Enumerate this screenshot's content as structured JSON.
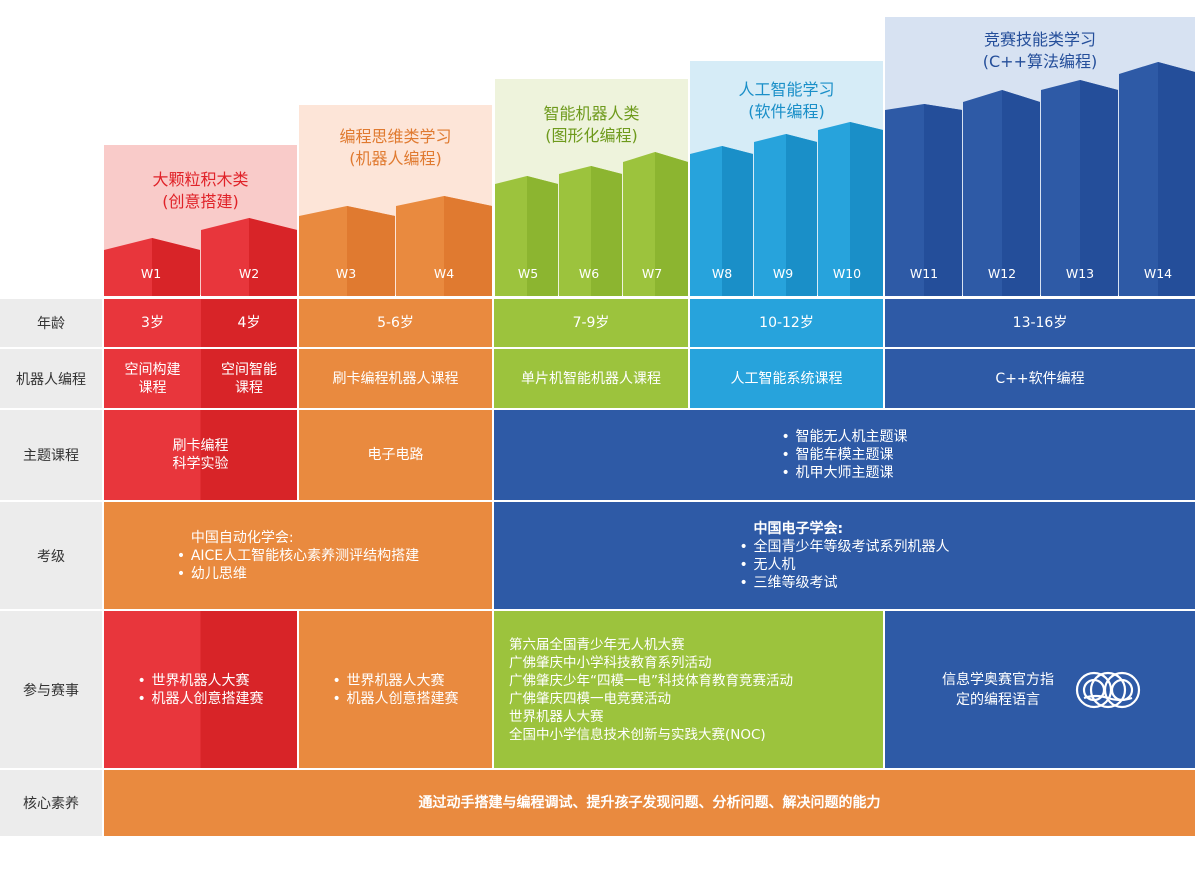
{
  "stages": [
    {
      "title": "大颗粒积木类",
      "subtitle": "(创意搭建)",
      "weeks": [
        "W1",
        "W2"
      ]
    },
    {
      "title": "编程思维类学习",
      "subtitle": "(机器人编程)",
      "weeks": [
        "W3",
        "W4"
      ]
    },
    {
      "title": "智能机器人类",
      "subtitle": "(图形化编程)",
      "weeks": [
        "W5",
        "W6",
        "W7"
      ]
    },
    {
      "title": "人工智能学习",
      "subtitle": "(软件编程)",
      "weeks": [
        "W8",
        "W9",
        "W10"
      ]
    },
    {
      "title": "竞赛技能类学习",
      "subtitle": "(C++算法编程)",
      "weeks": [
        "W11",
        "W12",
        "W13",
        "W14"
      ]
    }
  ],
  "rows": {
    "age": {
      "label": "年龄",
      "cells": [
        "3岁",
        "4岁",
        "5-6岁",
        "7-9岁",
        "10-12岁",
        "13-16岁"
      ]
    },
    "robot": {
      "label": "机器人编程",
      "cells": [
        "空间构建课程",
        "空间智能课程",
        "刷卡编程机器人课程",
        "单片机智能机器人课程",
        "人工智能系统课程",
        "C++软件编程"
      ]
    },
    "theme": {
      "label": "主题课程",
      "red_lines": [
        "刷卡编程",
        "科学实验"
      ],
      "orange": "电子电路",
      "blue_items": [
        "智能无人机主题课",
        "智能车模主题课",
        "机甲大师主题课"
      ]
    },
    "exam": {
      "label": "考级",
      "orange_heading": "中国自动化学会:",
      "orange_items": [
        "AICE人工智能核心素养测评结构搭建",
        "幼儿思维"
      ],
      "blue_heading": "中国电子学会:",
      "blue_items": [
        "全国青少年等级考试系列机器人",
        "无人机",
        "三维等级考试"
      ]
    },
    "contest": {
      "label": "参与赛事",
      "red_items": [
        "世界机器人大赛",
        "机器人创意搭建赛"
      ],
      "orange_items": [
        "世界机器人大赛",
        "机器人创意搭建赛"
      ],
      "green_lines": [
        "第六届全国青少年无人机大赛",
        "广佛肇庆中小学科技教育系列活动",
        "广佛肇庆少年“四模一电”科技体育教育竞赛活动",
        "广佛肇庆四模一电竞赛活动",
        "世界机器人大赛",
        "全国中小学信息技术创新与实践大赛(NOC)"
      ],
      "blue_text": "信息学奥赛官方指定的编程语言",
      "blue_icon": "noi-logo-icon"
    },
    "core": {
      "label": "核心素养",
      "text": "通过动手搭建与编程调试、提升孩子发现问题、分析问题、解决问题的能力"
    }
  },
  "colors": {
    "red": "#e8363c",
    "red_dark": "#d82428",
    "red_header": "#f9cbc9",
    "red_title": "#e02228",
    "orange": "#e98a3f",
    "orange_dark": "#e07a30",
    "orange_header": "#fde5d8",
    "green": "#9cc33d",
    "green_dark": "#8cb530",
    "green_header": "#eef3dc",
    "cyan": "#27a3dc",
    "cyan_dark": "#1a8fc8",
    "cyan_header": "#d6ecf7",
    "blue": "#2e5aa6",
    "blue_dark": "#244e9a",
    "blue_header": "#d7e2f2",
    "label_bg": "#ececec"
  }
}
